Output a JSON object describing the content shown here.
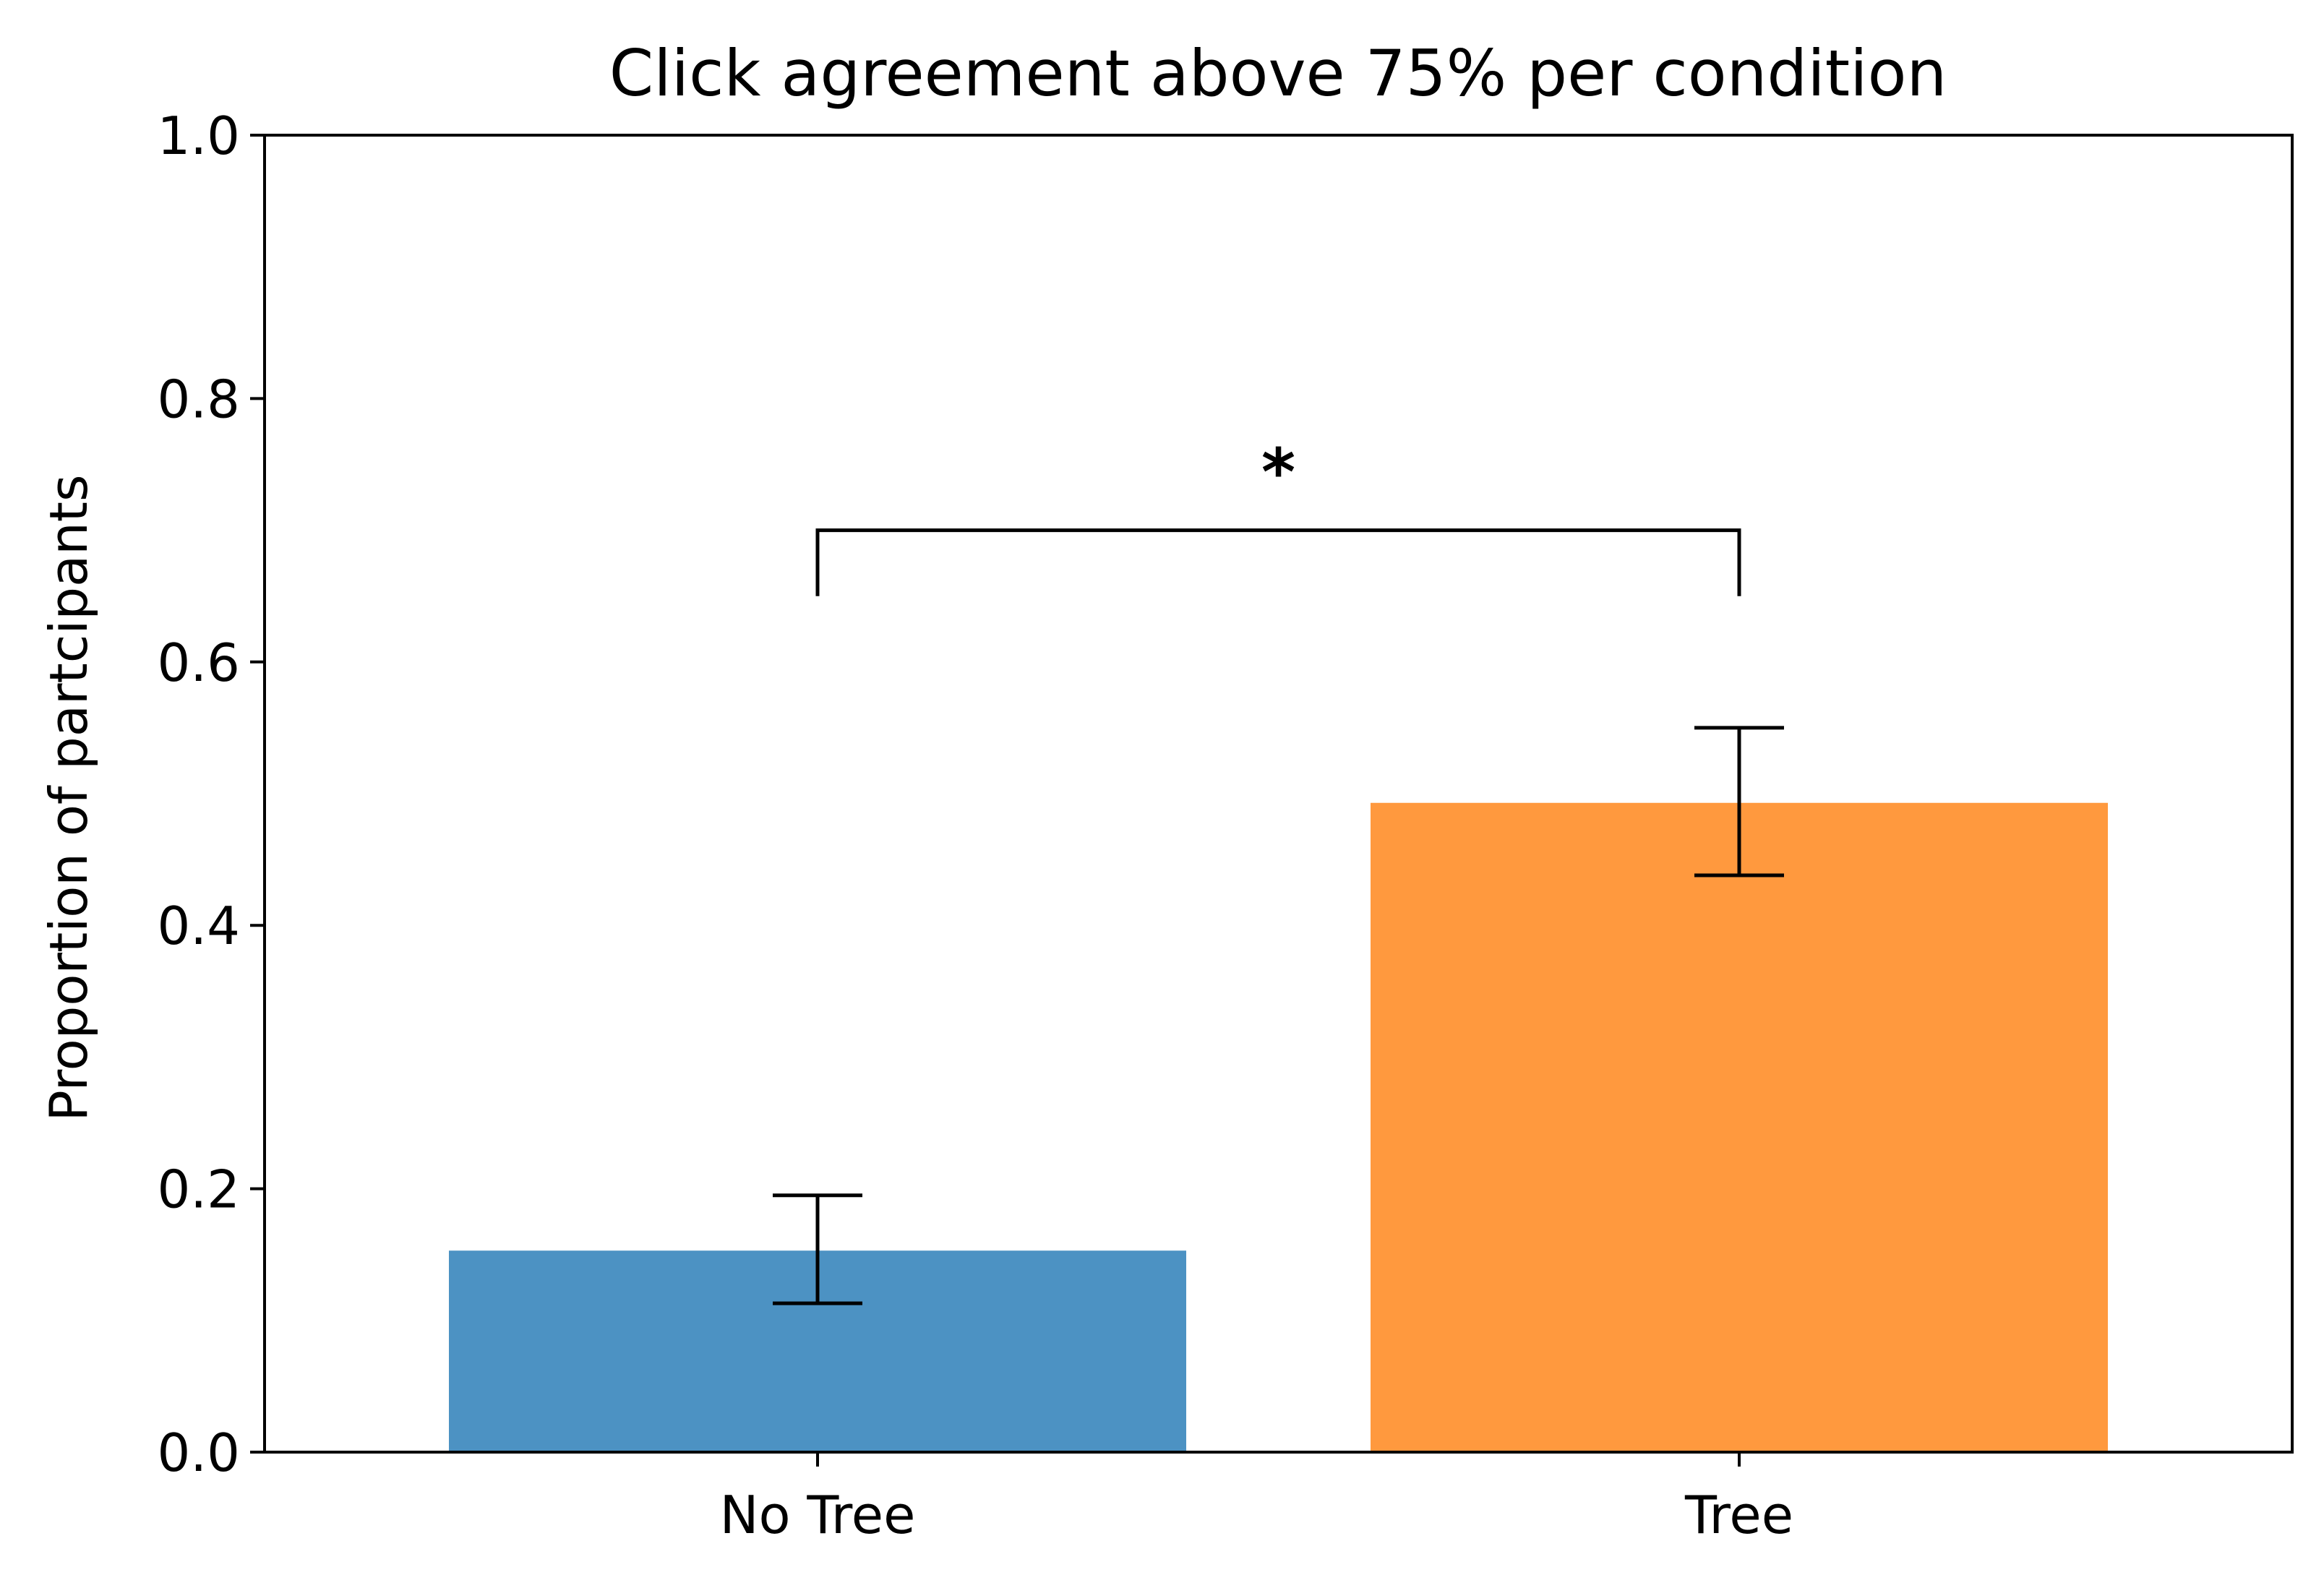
{
  "chart_data": {
    "type": "bar",
    "title": "Click agreement above 75% per condition",
    "xlabel": "",
    "ylabel": "Proportion of partcipants",
    "ylim": [
      0,
      1
    ],
    "yticks": [
      "0.0",
      "0.2",
      "0.4",
      "0.6",
      "0.8",
      "1.0"
    ],
    "ytick_values": [
      0,
      0.2,
      0.4,
      0.6,
      0.8,
      1.0
    ],
    "categories": [
      "No Tree",
      "Tree"
    ],
    "values": [
      0.153,
      0.493
    ],
    "error_low": [
      0.113,
      0.438
    ],
    "error_high": [
      0.195,
      0.55
    ],
    "colors": [
      "#4c92c3",
      "#ff993e"
    ],
    "grid": false,
    "significance": {
      "marker": "*",
      "bracket_low": 0.65,
      "bracket_high": 0.7,
      "marker_y": 0.75
    }
  }
}
